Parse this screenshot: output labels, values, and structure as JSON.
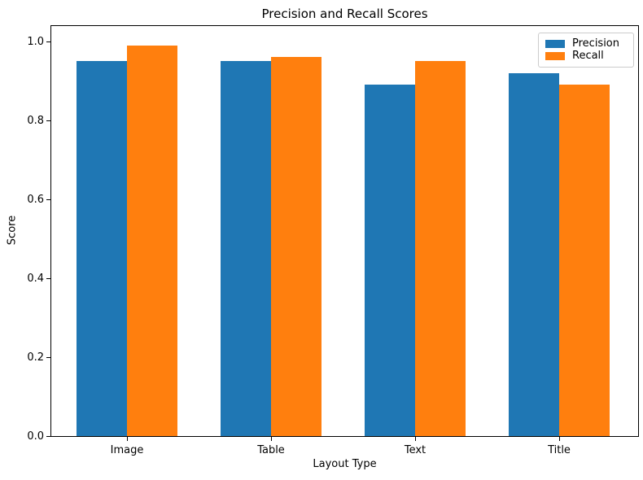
{
  "chart_data": {
    "type": "bar",
    "title": "Precision and Recall Scores",
    "xlabel": "Layout Type",
    "ylabel": "Score",
    "categories": [
      "Image",
      "Table",
      "Text",
      "Title"
    ],
    "series": [
      {
        "name": "Precision",
        "color": "#1f77b4",
        "values": [
          0.95,
          0.95,
          0.89,
          0.92
        ]
      },
      {
        "name": "Recall",
        "color": "#ff7f0e",
        "values": [
          0.99,
          0.96,
          0.95,
          0.89
        ]
      }
    ],
    "ylim": [
      0.0,
      1.04
    ],
    "yticks": [
      0.0,
      0.2,
      0.4,
      0.6,
      0.8,
      1.0
    ],
    "ytick_labels": [
      "0.0",
      "0.2",
      "0.4",
      "0.6",
      "0.8",
      "1.0"
    ],
    "grid": false,
    "legend_position": "upper right",
    "bar_width_fraction": 0.35
  }
}
